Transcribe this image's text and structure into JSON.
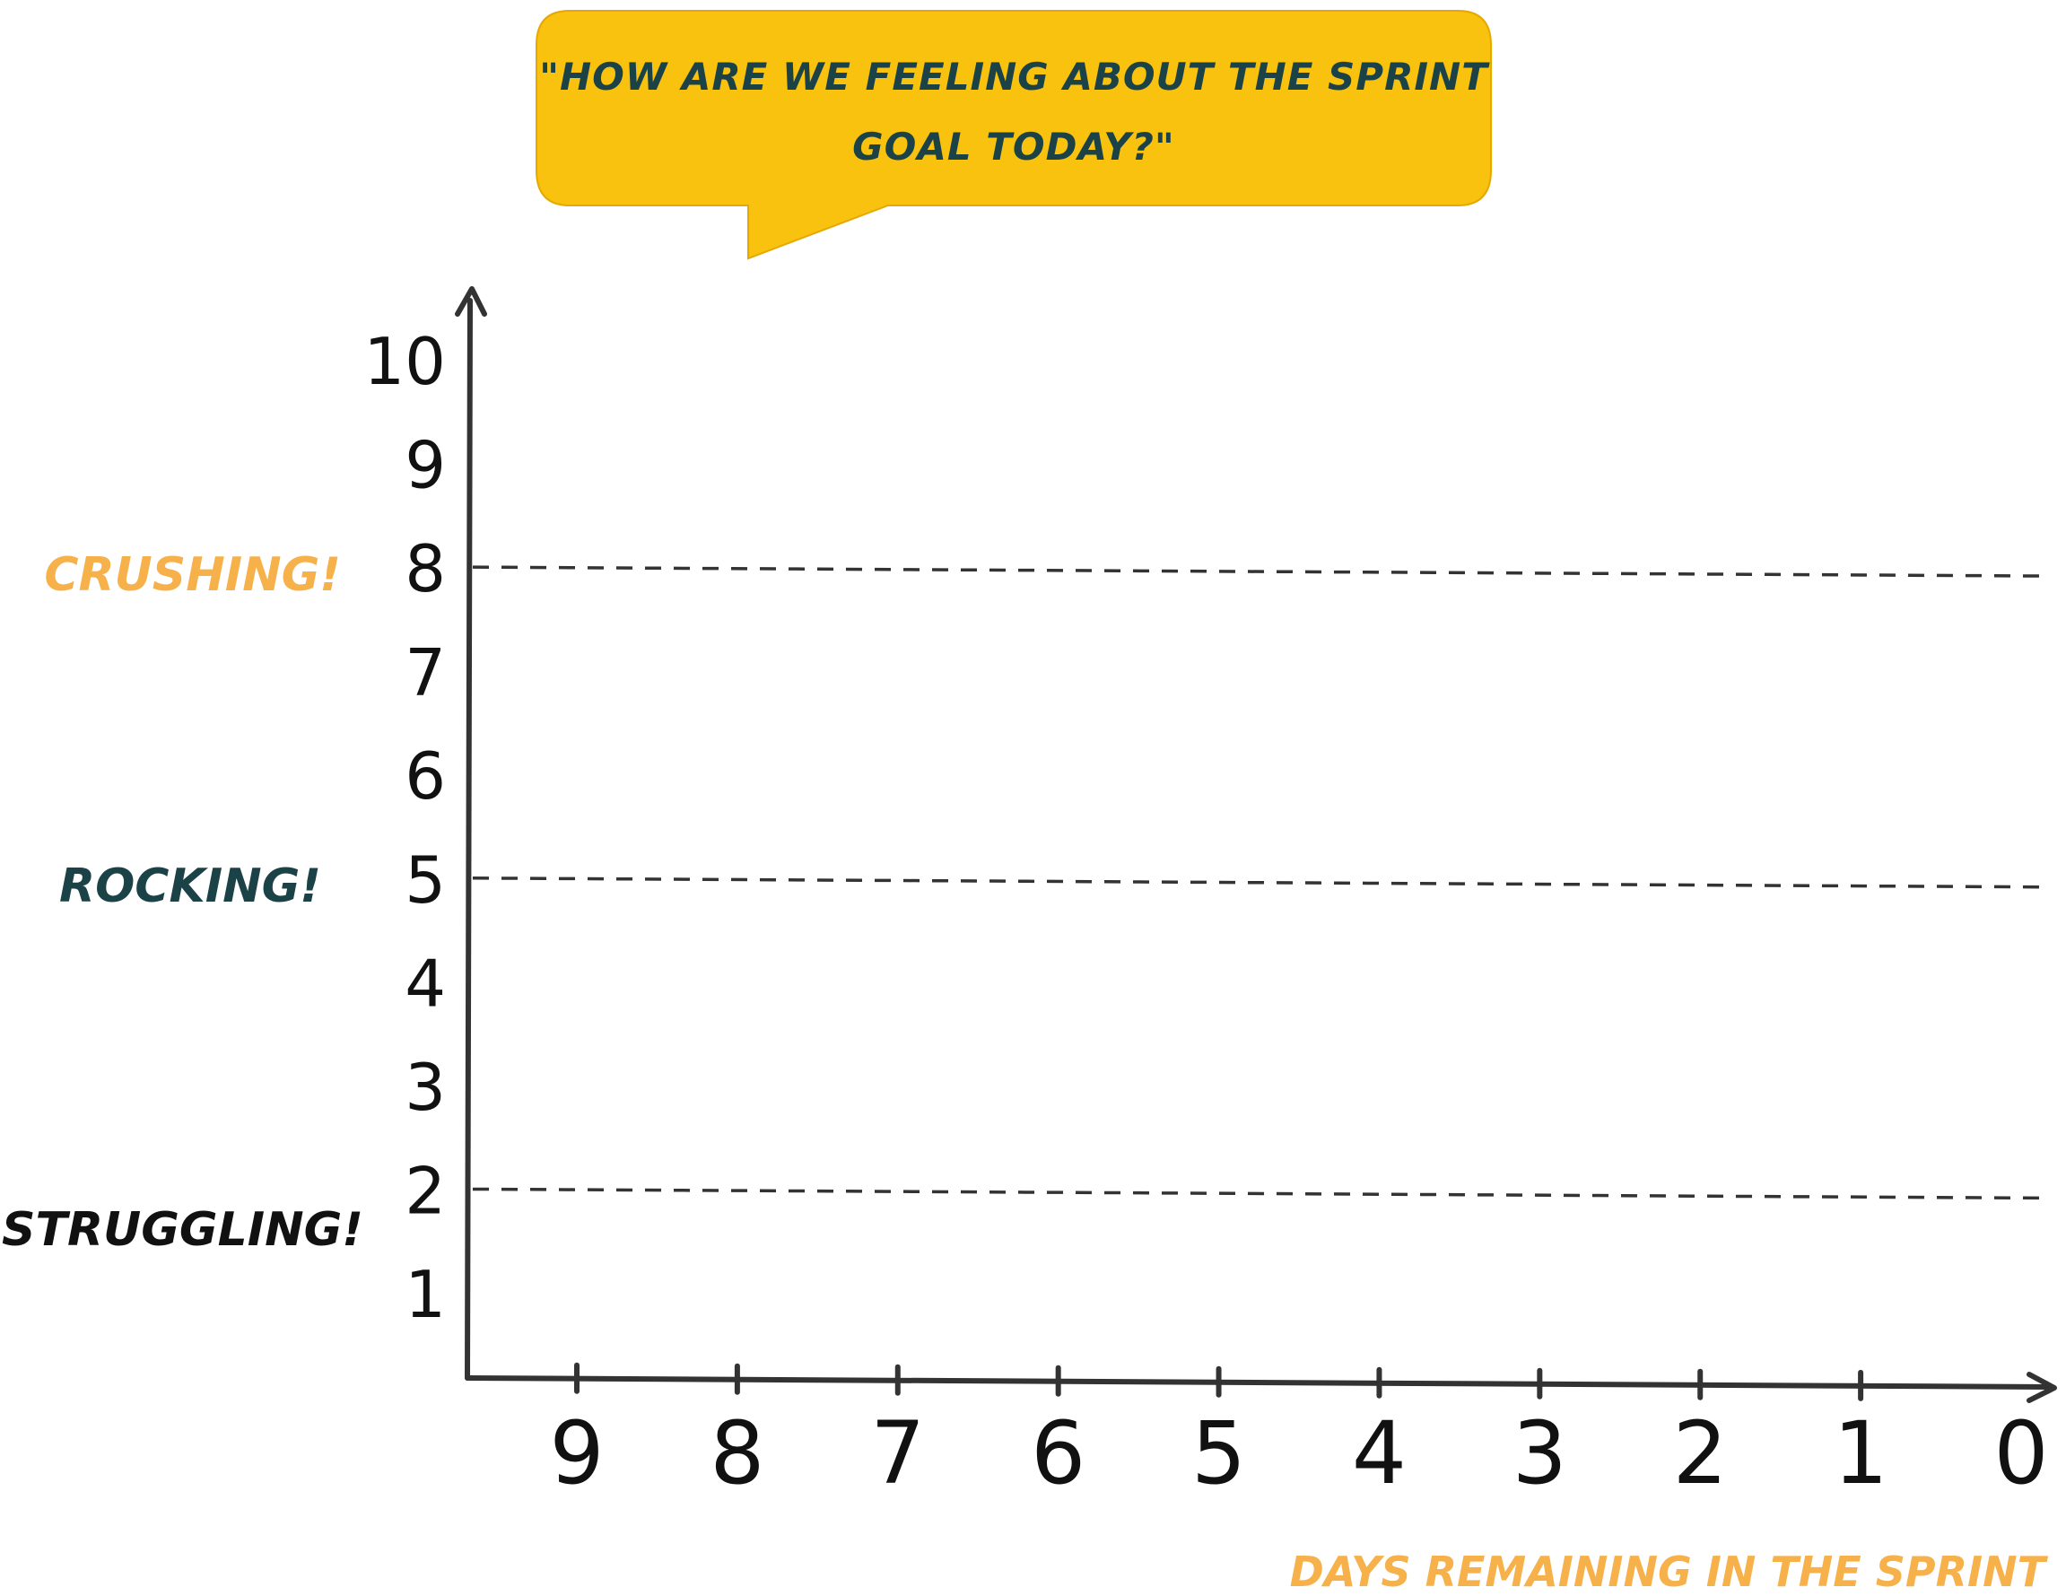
{
  "chart_data": {
    "type": "line",
    "title": "",
    "question": {
      "line1": "\"How are we feeling about the Sprint",
      "line2": "Goal today?\""
    },
    "xlabel": "DAYS REMAINING IN THE SPRINT",
    "ylabel": "",
    "x_ticks": [
      "9",
      "8",
      "7",
      "6",
      "5",
      "4",
      "3",
      "2",
      "1",
      "0"
    ],
    "y_ticks": [
      "1",
      "2",
      "3",
      "4",
      "5",
      "6",
      "7",
      "8",
      "9",
      "10"
    ],
    "xlim": [
      9,
      0
    ],
    "ylim": [
      1,
      10
    ],
    "grid": false,
    "reference_lines": [
      {
        "y": 8,
        "label": "CRUSHING!",
        "color": "#f6b14a"
      },
      {
        "y": 5,
        "label": "ROCKING!",
        "color": "#1b4347"
      },
      {
        "y": 2,
        "label": "STRUGGLING!",
        "color": "#111111"
      }
    ],
    "series": []
  },
  "colors": {
    "bubble_fill": "#f8c20f",
    "bubble_text": "#1b4347",
    "axis": "#333333",
    "tick_label": "#111111",
    "xlabel": "#f6b14a",
    "dashed_line": "#333333"
  }
}
